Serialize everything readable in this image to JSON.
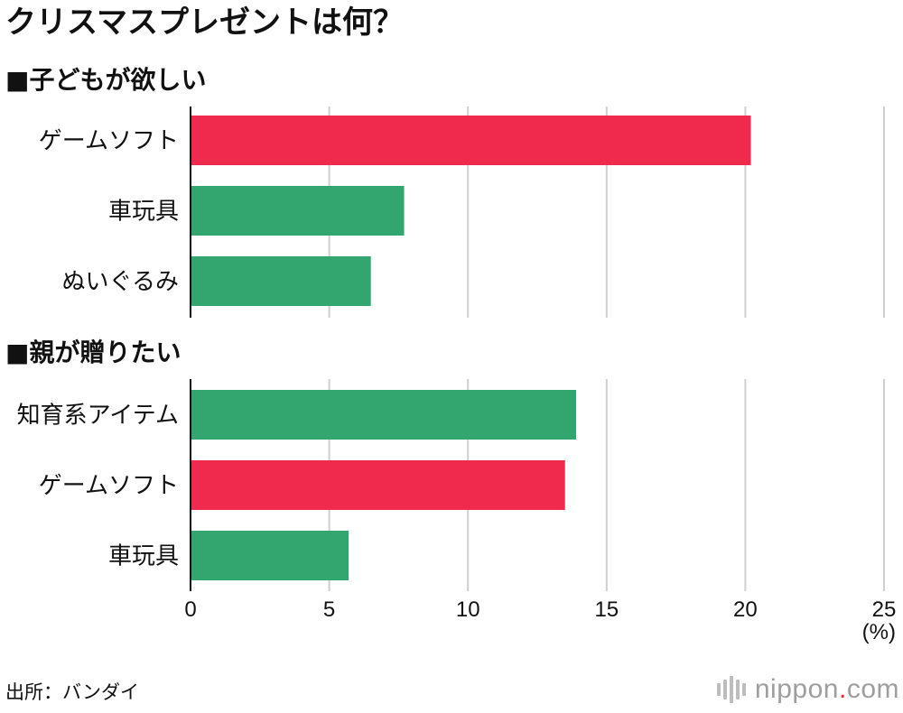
{
  "title": "クリスマスプレゼントは何？",
  "colors": {
    "highlight": "#f02a4d",
    "normal": "#33a56f",
    "grid": "#cfcfcf",
    "axis": "#111111"
  },
  "chart_data": [
    {
      "type": "bar",
      "orientation": "horizontal",
      "title": "■子どもが欲しい",
      "categories": [
        "ゲームソフト",
        "車玩具",
        "ぬいぐるみ"
      ],
      "values": [
        20.2,
        7.7,
        6.5
      ],
      "bar_colors": [
        "#f02a4d",
        "#33a56f",
        "#33a56f"
      ],
      "xlim": [
        0,
        25
      ],
      "grid": true
    },
    {
      "type": "bar",
      "orientation": "horizontal",
      "title": "■親が贈りたい",
      "categories": [
        "知育系アイテム",
        "ゲームソフト",
        "車玩具"
      ],
      "values": [
        13.9,
        13.5,
        5.7
      ],
      "bar_colors": [
        "#33a56f",
        "#f02a4d",
        "#33a56f"
      ],
      "xlim": [
        0,
        25
      ],
      "grid": true
    }
  ],
  "axis": {
    "ticks": [
      "0",
      "5",
      "10",
      "15",
      "20",
      "25"
    ],
    "unit": "(%)"
  },
  "footer": {
    "source": "出所：バンダイ",
    "brand_name": "nippon",
    "brand_dot": ".",
    "brand_domain": "com"
  }
}
